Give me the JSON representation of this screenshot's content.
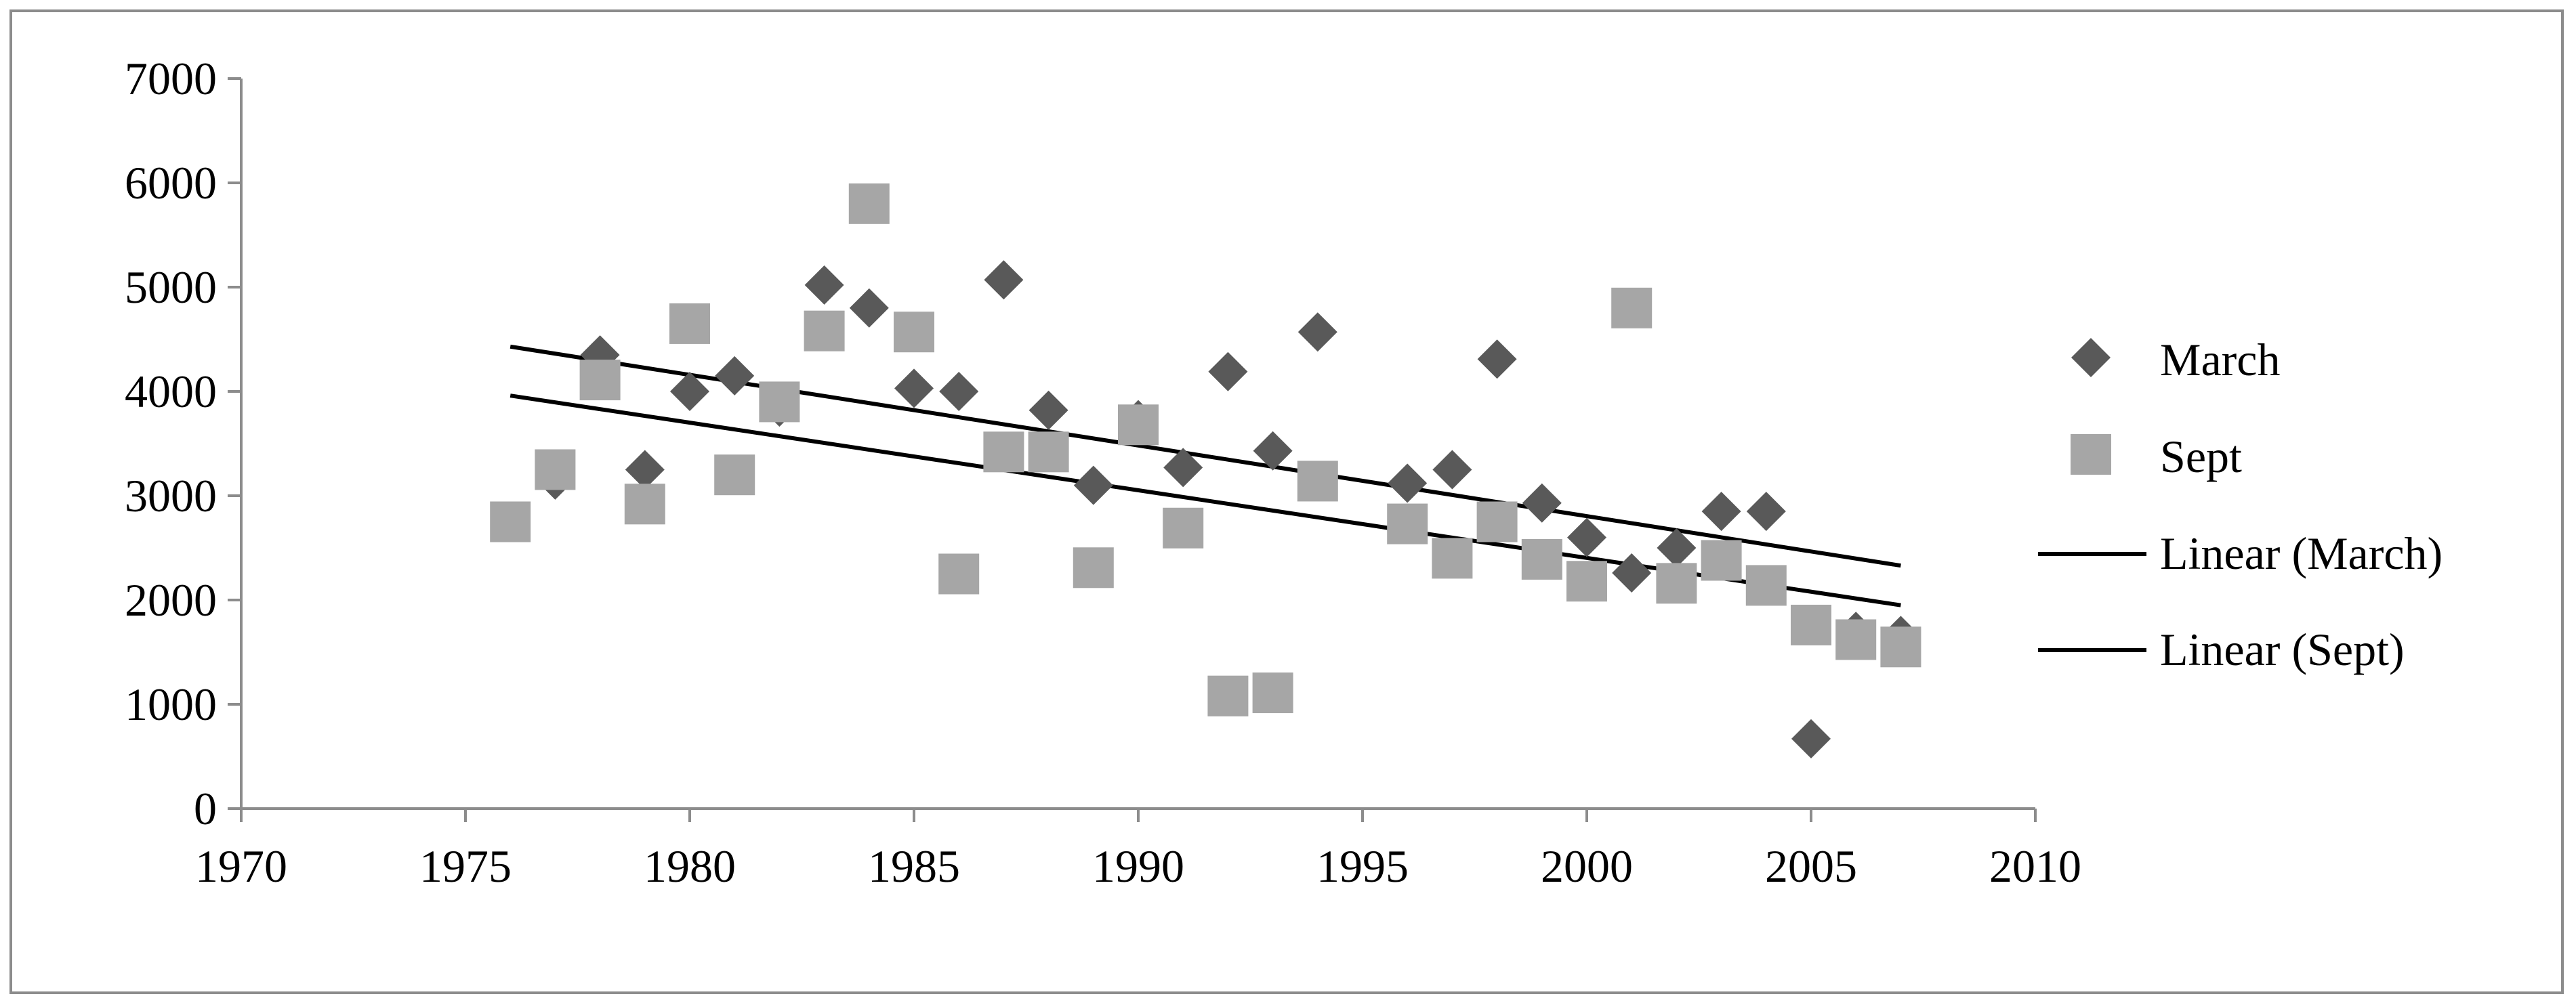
{
  "chart_data": {
    "type": "scatter",
    "title": "",
    "xlabel": "",
    "ylabel": "",
    "xlim": [
      1970,
      2010
    ],
    "ylim": [
      0,
      7000
    ],
    "x_ticks": [
      "1970",
      "1975",
      "1980",
      "1985",
      "1990",
      "1995",
      "2000",
      "2005",
      "2010"
    ],
    "y_ticks": [
      "0",
      "1000",
      "2000",
      "3000",
      "4000",
      "5000",
      "6000",
      "7000"
    ],
    "grid": false,
    "legend_position": "right",
    "series": [
      {
        "name": "March",
        "marker": "diamond",
        "color": "#595959",
        "x": [
          1977,
          1978,
          1979,
          1980,
          1981,
          1982,
          1983,
          1984,
          1985,
          1986,
          1987,
          1988,
          1989,
          1990,
          1991,
          1992,
          1993,
          1994,
          1996,
          1997,
          1998,
          1999,
          2000,
          2001,
          2002,
          2003,
          2004,
          2005,
          2006,
          2007
        ],
        "y": [
          3150,
          4350,
          3250,
          4000,
          4150,
          3850,
          5020,
          4800,
          4030,
          4000,
          5070,
          3820,
          3100,
          3730,
          3270,
          4190,
          3430,
          4570,
          3120,
          3250,
          4310,
          2930,
          2600,
          2260,
          2500,
          2850,
          2850,
          670,
          1700,
          1660
        ]
      },
      {
        "name": "Sept",
        "marker": "square",
        "color": "#a6a6a6",
        "x": [
          1976,
          1977,
          1978,
          1979,
          1980,
          1981,
          1982,
          1983,
          1984,
          1985,
          1986,
          1987,
          1988,
          1989,
          1990,
          1991,
          1992,
          1993,
          1994,
          1996,
          1997,
          1998,
          1999,
          2000,
          2001,
          2002,
          2003,
          2004,
          2005,
          2006,
          2007
        ],
        "y": [
          2750,
          3250,
          4110,
          2920,
          4650,
          3200,
          3900,
          4580,
          5800,
          4570,
          2250,
          3420,
          3420,
          2310,
          3680,
          2690,
          1080,
          1110,
          3140,
          2730,
          2400,
          2750,
          2390,
          2180,
          4800,
          2160,
          2380,
          2140,
          1760,
          1620,
          1550
        ]
      }
    ],
    "trendlines": [
      {
        "name": "Linear (March)",
        "color": "#000000",
        "x": [
          1976,
          2007
        ],
        "y": [
          4430,
          2330
        ]
      },
      {
        "name": "Linear (Sept)",
        "color": "#000000",
        "x": [
          1976,
          2007
        ],
        "y": [
          3960,
          1950
        ]
      }
    ]
  }
}
